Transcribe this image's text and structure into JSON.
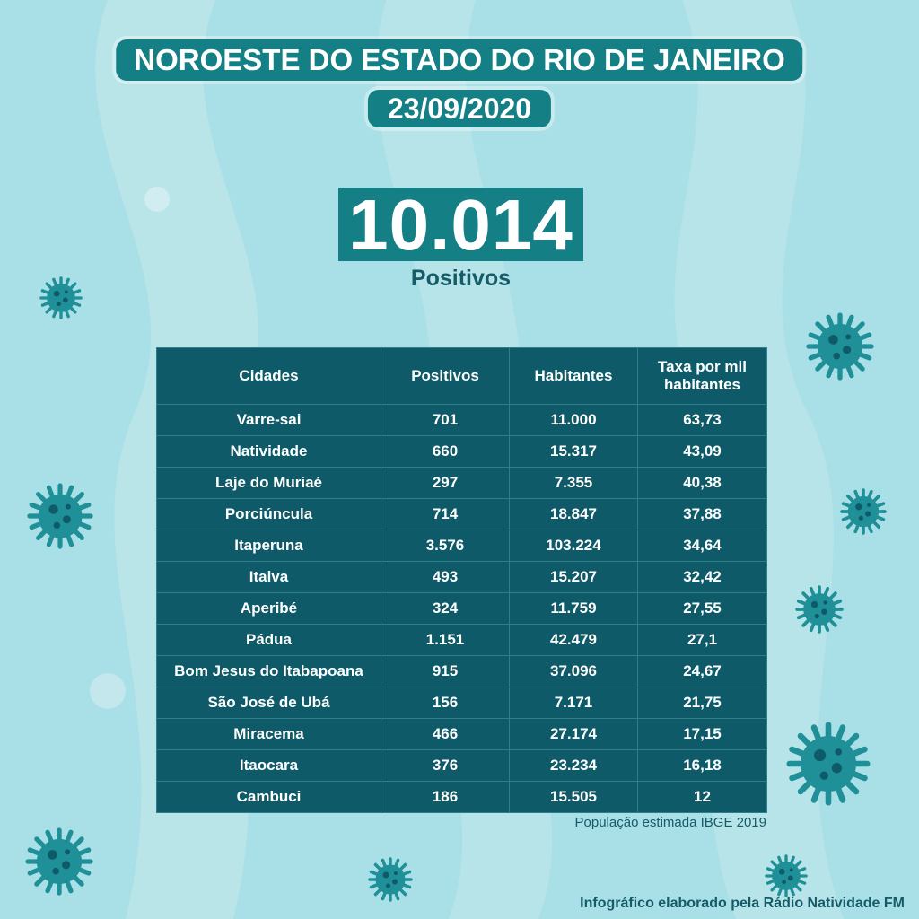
{
  "header": {
    "title": "NOROESTE DO ESTADO DO RIO DE JANEIRO",
    "date": "23/09/2020"
  },
  "summary": {
    "total_positives": "10.014",
    "total_label": "Positivos"
  },
  "table": {
    "columns": [
      "Cidades",
      "Positivos",
      "Habitantes",
      "Taxa por mil habitantes"
    ],
    "rows": [
      [
        "Varre-sai",
        "701",
        "11.000",
        "63,73"
      ],
      [
        "Natividade",
        "660",
        "15.317",
        "43,09"
      ],
      [
        "Laje do Muriaé",
        "297",
        "7.355",
        "40,38"
      ],
      [
        "Porciúncula",
        "714",
        "18.847",
        "37,88"
      ],
      [
        "Itaperuna",
        "3.576",
        "103.224",
        "34,64"
      ],
      [
        "Italva",
        "493",
        "15.207",
        "32,42"
      ],
      [
        "Aperibé",
        "324",
        "11.759",
        "27,55"
      ],
      [
        "Pádua",
        "1.151",
        "42.479",
        "27,1"
      ],
      [
        "Bom Jesus do Itabapoana",
        "915",
        "37.096",
        "24,67"
      ],
      [
        "São José de Ubá",
        "156",
        "7.171",
        "21,75"
      ],
      [
        "Miracema",
        "466",
        "27.174",
        "17,15"
      ],
      [
        "Itaocara",
        "376",
        "23.234",
        "16,18"
      ],
      [
        "Cambuci",
        "186",
        "15.505",
        "12"
      ]
    ]
  },
  "footer": {
    "source": "População estimada IBGE 2019",
    "credit": "Infográfico elaborado pela Rádio Natividade FM"
  },
  "colors": {
    "background": "#a9dfe6",
    "accent": "#157f86",
    "table": "#0e5a68",
    "text_dark": "#155b68"
  },
  "decorations": [
    "virus-icon"
  ]
}
